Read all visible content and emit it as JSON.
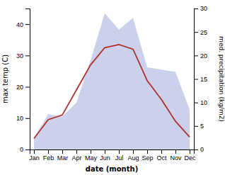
{
  "chart_data": {
    "type": "line",
    "xlabel": "date (month)",
    "ylabel": "max temp (C)",
    "y2label": "med. precipitation (kg/m2)",
    "categories": [
      "Jan",
      "Feb",
      "Mar",
      "Apr",
      "May",
      "Jun",
      "Jul",
      "Aug",
      "Sep",
      "Oct",
      "Nov",
      "Dec"
    ],
    "series": [
      {
        "type": "area",
        "axis": "y2",
        "color": "#b0b8e0",
        "values": [
          2.5,
          7.5,
          7.0,
          10.0,
          19.0,
          29.0,
          25.5,
          28.0,
          17.5,
          17.0,
          16.5,
          8.5
        ]
      },
      {
        "type": "line",
        "color": "#b03030",
        "values": [
          3.5,
          9.5,
          11.0,
          19.0,
          27.0,
          32.5,
          33.5,
          32.0,
          22.0,
          16.0,
          9.0,
          4.0
        ]
      }
    ],
    "ylim": [
      0,
      45
    ],
    "yticks": [
      0,
      10,
      20,
      30,
      40
    ],
    "y2lim": [
      0,
      30
    ],
    "y2ticks": [
      0,
      5,
      10,
      15,
      20,
      25,
      30
    ],
    "grid": false
  }
}
